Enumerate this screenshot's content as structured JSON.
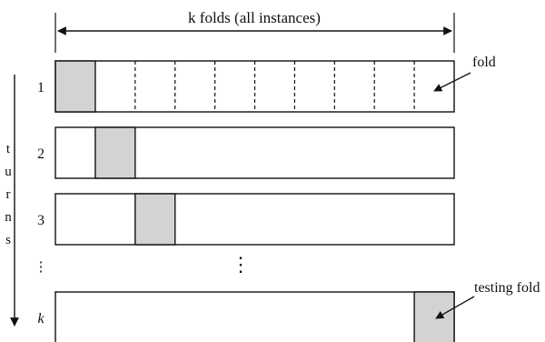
{
  "header": {
    "span_label": "k folds (all instances)"
  },
  "callouts": {
    "fold": "fold",
    "testing_fold": "testing fold"
  },
  "side_axis": {
    "letters": [
      "t",
      "u",
      "r",
      "n",
      "s"
    ]
  },
  "rows": [
    {
      "label": "1",
      "test_fold_index": 1,
      "show_fold_dividers": true
    },
    {
      "label": "2",
      "test_fold_index": 2,
      "show_fold_dividers": false
    },
    {
      "label": "3",
      "test_fold_index": 3,
      "show_fold_dividers": false
    },
    {
      "label": "k",
      "test_fold_index": 10,
      "show_fold_dividers": false
    }
  ],
  "row_ellipsis": "⋮",
  "middle_ellipsis": "⋮",
  "fold_count": 10,
  "colors": {
    "test_fold_fill": "#d3d3d3",
    "line": "#111111",
    "background": "#ffffff"
  }
}
